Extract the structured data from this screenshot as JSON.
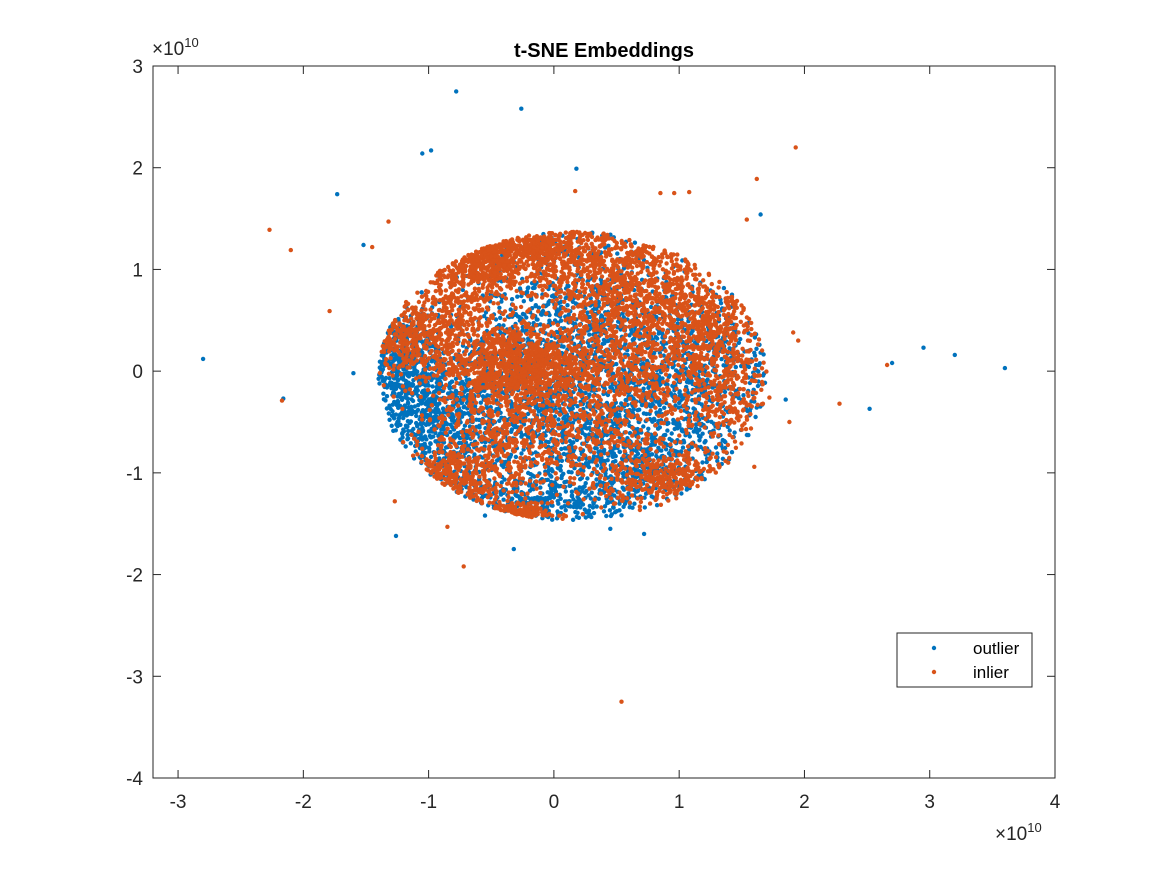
{
  "chart_data": {
    "type": "scatter",
    "title": "t-SNE Embeddings",
    "xlabel": "",
    "ylabel": "",
    "xlim": [
      -3.2,
      4.0
    ],
    "ylim": [
      -4.0,
      3.0
    ],
    "x_ticks": [
      "-3",
      "-2",
      "-1",
      "0",
      "1",
      "2",
      "3",
      "4"
    ],
    "y_ticks": [
      "3",
      "2",
      "1",
      "0",
      "-1",
      "-2",
      "-3",
      "-4"
    ],
    "x_multiplier": "×10",
    "x_multiplier_exp": "10",
    "y_multiplier": "×10",
    "y_multiplier_exp": "10",
    "scale_note": "values shown in units of 1e10",
    "grid": false,
    "legend_position": "bottom-right",
    "series": [
      {
        "name": "outlier",
        "color": "#0072BD",
        "points": [
          [
            -0.78,
            2.75
          ],
          [
            -0.26,
            2.58
          ],
          [
            -1.05,
            2.14
          ],
          [
            -0.98,
            2.17
          ],
          [
            0.18,
            1.99
          ],
          [
            -1.73,
            1.74
          ],
          [
            -1.52,
            1.24
          ],
          [
            1.65,
            1.54
          ],
          [
            -2.8,
            0.12
          ],
          [
            -2.16,
            -0.27
          ],
          [
            -1.26,
            -1.62
          ],
          [
            -0.32,
            -1.75
          ],
          [
            0.45,
            -1.55
          ],
          [
            2.7,
            0.08
          ],
          [
            2.95,
            0.23
          ],
          [
            3.2,
            0.16
          ],
          [
            3.6,
            0.03
          ],
          [
            2.52,
            -0.37
          ],
          [
            -0.55,
            -1.42
          ],
          [
            0.72,
            -1.6
          ],
          [
            1.85,
            -0.28
          ],
          [
            -1.6,
            -0.02
          ],
          [
            1.6,
            0.18
          ],
          [
            0.5,
            0.8
          ],
          [
            -0.2,
            0.3
          ]
        ],
        "clusters": [
          {
            "cx": -1.0,
            "cy": -0.5,
            "sx": 0.28,
            "sy": 0.45,
            "n": 700
          },
          {
            "cx": -0.2,
            "cy": -0.3,
            "sx": 0.45,
            "sy": 0.55,
            "n": 900
          },
          {
            "cx": 0.6,
            "cy": -0.4,
            "sx": 0.45,
            "sy": 0.5,
            "n": 800
          },
          {
            "cx": 0.2,
            "cy": 0.6,
            "sx": 0.4,
            "sy": 0.45,
            "n": 500
          },
          {
            "cx": 1.2,
            "cy": 0.1,
            "sx": 0.35,
            "sy": 0.4,
            "n": 450
          },
          {
            "cx": -0.2,
            "cy": -1.3,
            "sx": 0.35,
            "sy": 0.15,
            "n": 250
          },
          {
            "cx": 0.6,
            "cy": -1.0,
            "sx": 0.35,
            "sy": 0.3,
            "n": 300
          },
          {
            "cx": -1.25,
            "cy": 0.1,
            "sx": 0.15,
            "sy": 0.25,
            "n": 250
          }
        ]
      },
      {
        "name": "inlier",
        "color": "#D95319",
        "points": [
          [
            0.54,
            -3.25
          ],
          [
            1.93,
            2.2
          ],
          [
            -2.27,
            1.39
          ],
          [
            -2.1,
            1.19
          ],
          [
            -1.79,
            0.59
          ],
          [
            -0.72,
            -1.92
          ],
          [
            2.28,
            -0.32
          ],
          [
            2.66,
            0.06
          ],
          [
            1.91,
            0.38
          ],
          [
            1.62,
            1.89
          ],
          [
            1.54,
            1.49
          ],
          [
            -1.32,
            1.47
          ],
          [
            0.17,
            1.77
          ],
          [
            0.96,
            1.75
          ],
          [
            1.08,
            1.76
          ],
          [
            -2.17,
            -0.29
          ],
          [
            1.6,
            -0.94
          ],
          [
            1.72,
            -0.26
          ],
          [
            -1.27,
            -1.28
          ],
          [
            -0.85,
            -1.53
          ],
          [
            0.85,
            1.75
          ],
          [
            -1.45,
            1.22
          ],
          [
            1.88,
            -0.5
          ],
          [
            1.56,
            -0.33
          ],
          [
            1.95,
            0.3
          ]
        ],
        "clusters": [
          {
            "cx": -0.6,
            "cy": 1.15,
            "sx": 0.22,
            "sy": 0.15,
            "n": 450
          },
          {
            "cx": -0.05,
            "cy": 1.25,
            "sx": 0.15,
            "sy": 0.15,
            "n": 250
          },
          {
            "cx": 0.45,
            "cy": 1.05,
            "sx": 0.45,
            "sy": 0.25,
            "n": 700
          },
          {
            "cx": -0.35,
            "cy": 0.05,
            "sx": 0.28,
            "sy": 0.2,
            "n": 800
          },
          {
            "cx": 0.5,
            "cy": 0.1,
            "sx": 0.55,
            "sy": 0.25,
            "n": 700
          },
          {
            "cx": 0.8,
            "cy": 0.6,
            "sx": 0.35,
            "sy": 0.2,
            "n": 450
          },
          {
            "cx": -1.2,
            "cy": 0.35,
            "sx": 0.25,
            "sy": 0.18,
            "n": 350
          },
          {
            "cx": -0.75,
            "cy": 0.6,
            "sx": 0.2,
            "sy": 0.18,
            "n": 250
          },
          {
            "cx": 0.3,
            "cy": -0.5,
            "sx": 0.5,
            "sy": 0.4,
            "n": 650
          },
          {
            "cx": -0.5,
            "cy": -0.75,
            "sx": 0.3,
            "sy": 0.3,
            "n": 400
          },
          {
            "cx": 0.9,
            "cy": -1.05,
            "sx": 0.25,
            "sy": 0.15,
            "n": 300
          },
          {
            "cx": 1.3,
            "cy": 0.35,
            "sx": 0.2,
            "sy": 0.25,
            "n": 300
          },
          {
            "cx": 1.4,
            "cy": -0.3,
            "sx": 0.15,
            "sy": 0.2,
            "n": 150
          },
          {
            "cx": -0.9,
            "cy": -1.1,
            "sx": 0.2,
            "sy": 0.15,
            "n": 200
          },
          {
            "cx": -0.35,
            "cy": -1.4,
            "sx": 0.15,
            "sy": 0.05,
            "n": 120
          }
        ]
      }
    ]
  },
  "legend": {
    "items": [
      {
        "label": "outlier",
        "color": "#0072BD"
      },
      {
        "label": "inlier",
        "color": "#D95319"
      }
    ]
  }
}
